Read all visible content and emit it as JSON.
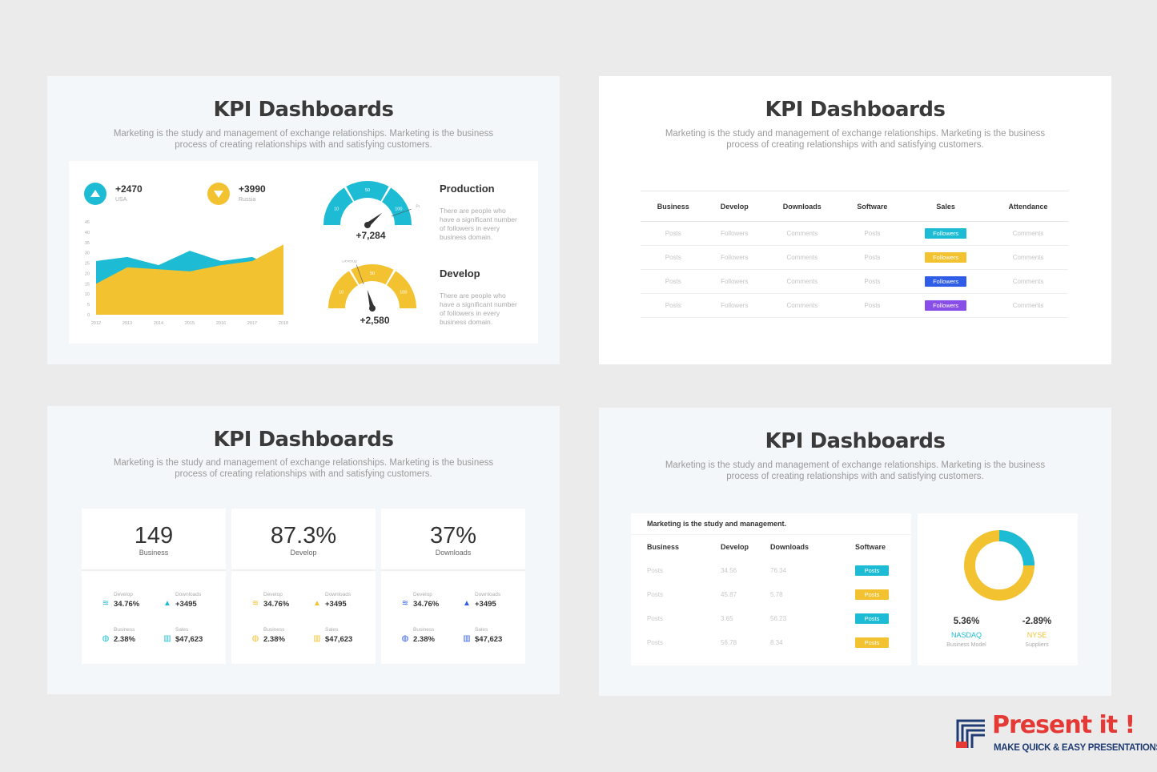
{
  "slides": [
    {
      "title": "KPI Dashboards",
      "subtitle": "Marketing is the study and management of exchange relationships. Marketing is the business process of creating relationships with and satisfying customers.",
      "kpis": [
        {
          "value": "+2470",
          "label": "USA",
          "direction": "up",
          "color": "#1dbcd4"
        },
        {
          "value": "+3990",
          "label": "Russia",
          "direction": "down",
          "color": "#f2c230"
        }
      ],
      "chart_data": {
        "type": "area",
        "x": [
          "2012",
          "2013",
          "2014",
          "2015",
          "2016",
          "2017",
          "2018"
        ],
        "yticks": [
          "45",
          "40",
          "35",
          "30",
          "25",
          "20",
          "15",
          "10",
          "5",
          "0"
        ],
        "ylim": [
          0,
          45
        ],
        "series": [
          {
            "values": [
              26,
              28,
              24,
              31,
              26,
              28,
              21
            ],
            "color": "#1dbcd4"
          },
          {
            "values": [
              15,
              23,
              22,
              21,
              24,
              26,
              34
            ],
            "color": "#f2c230"
          }
        ]
      },
      "gauges": [
        {
          "title": "Production",
          "value": "+7,284",
          "ticks": [
            "10",
            "50",
            "100"
          ],
          "marker": "Production",
          "desc": "There are people who have a significant number of followers in every business domain.",
          "color": "#1dbcd4"
        },
        {
          "title": "Develop",
          "value": "+2,580",
          "ticks": [
            "10",
            "50",
            "100"
          ],
          "marker": "Develop",
          "desc": "There are people who have a significant number of followers in every business domain.",
          "color": "#f2c230"
        }
      ]
    },
    {
      "title": "KPI Dashboards",
      "subtitle": "Marketing is the study and management of exchange relationships. Marketing is the business process of creating relationships with and satisfying customers.",
      "table": {
        "headers": [
          "Business",
          "Develop",
          "Downloads",
          "Software",
          "Sales",
          "Attendance"
        ],
        "rows": [
          [
            "Posts",
            "Followers",
            "Comments",
            "Posts",
            "Followers",
            "Comments"
          ],
          [
            "Posts",
            "Followers",
            "Comments",
            "Posts",
            "Followers",
            "Comments"
          ],
          [
            "Posts",
            "Followers",
            "Comments",
            "Posts",
            "Followers",
            "Comments"
          ],
          [
            "Posts",
            "Followers",
            "Comments",
            "Posts",
            "Followers",
            "Comments"
          ]
        ],
        "pill_colors": [
          "#1dbcd4",
          "#f2c230",
          "#2f5de8",
          "#8a4ee8"
        ]
      }
    },
    {
      "title": "KPI Dashboards",
      "subtitle": "Marketing is the study and management of exchange relationships. Marketing is the business process of creating relationships with and satisfying customers.",
      "cards": [
        {
          "big": "149",
          "label": "Business",
          "accent": "#1dbcd4",
          "stats": [
            {
              "label": "Develop",
              "value": "34.76%"
            },
            {
              "label": "Downloads",
              "value": "+3495"
            },
            {
              "label": "Business",
              "value": "2.38%"
            },
            {
              "label": "Sales",
              "value": "$47,623"
            }
          ]
        },
        {
          "big": "87.3%",
          "label": "Develop",
          "accent": "#f2c230",
          "stats": [
            {
              "label": "Develop",
              "value": "34.76%"
            },
            {
              "label": "Downloads",
              "value": "+3495"
            },
            {
              "label": "Business",
              "value": "2.38%"
            },
            {
              "label": "Sales",
              "value": "$47,623"
            }
          ]
        },
        {
          "big": "37%",
          "label": "Downloads",
          "accent": "#2f5de8",
          "stats": [
            {
              "label": "Develop",
              "value": "34.76%"
            },
            {
              "label": "Downloads",
              "value": "+3495"
            },
            {
              "label": "Business",
              "value": "2.38%"
            },
            {
              "label": "Sales",
              "value": "$47,623"
            }
          ]
        }
      ]
    },
    {
      "title": "KPI Dashboards",
      "subtitle": "Marketing is the study and management of exchange relationships. Marketing is the business process of creating relationships with and satisfying customers.",
      "table_title": "Marketing is the study and management.",
      "table": {
        "headers": [
          "Business",
          "Develop",
          "Downloads",
          "Software"
        ],
        "rows": [
          [
            "Posts",
            "34.56",
            "76.34",
            "Posts"
          ],
          [
            "Posts",
            "45.87",
            "5.78",
            "Posts"
          ],
          [
            "Posts",
            "3.65",
            "56.23",
            "Posts"
          ],
          [
            "Posts",
            "56.78",
            "8.34",
            "Posts"
          ]
        ],
        "pill_colors": [
          "#1dbcd4",
          "#f2c230",
          "#1dbcd4",
          "#f2c230"
        ]
      },
      "donut": {
        "share_teal": 0.25,
        "teal": "#1dbcd4",
        "yellow": "#f2c230"
      },
      "markets": [
        {
          "value": "5.36%",
          "name": "NASDAQ",
          "desc": "Business Model",
          "color": "#1dbcd4"
        },
        {
          "value": "-2.89%",
          "name": "NYSE",
          "desc": "Suppliers",
          "color": "#f2c230"
        }
      ]
    }
  ],
  "logo": {
    "name": "Present it !",
    "tagline": "MAKE QUICK & EASY PRESENTATIONS"
  }
}
